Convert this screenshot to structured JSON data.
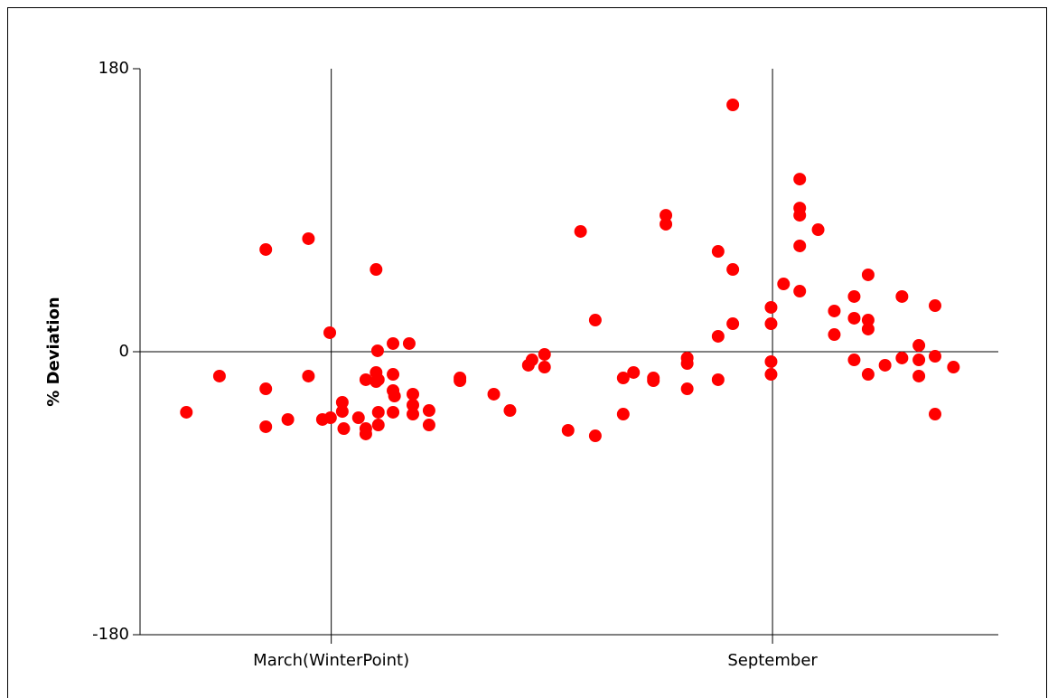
{
  "chart_data": {
    "type": "scatter",
    "y_label": "% Deviation",
    "color": "#ff0000",
    "xlim": [
      0.4,
      12.07
    ],
    "xticks": [
      {
        "value": 3,
        "label": "March(WinterPoint)"
      },
      {
        "value": 9,
        "label": "September"
      }
    ],
    "ylim": [
      -180,
      180
    ],
    "yticks": [
      -180,
      0,
      180
    ],
    "grid": true,
    "x": [
      1.03,
      1.48,
      2.11,
      2.11,
      2.11,
      2.41,
      2.69,
      2.69,
      2.88,
      2.98,
      2.99,
      3.15,
      3.15,
      3.17,
      3.37,
      3.47,
      3.47,
      3.47,
      3.61,
      3.63,
      3.61,
      3.61,
      3.64,
      3.64,
      3.64,
      3.84,
      3.84,
      3.84,
      3.86,
      3.84,
      4.06,
      4.11,
      4.11,
      4.11,
      4.33,
      4.33,
      4.75,
      4.75,
      5.21,
      5.43,
      5.68,
      5.73,
      5.9,
      5.9,
      6.22,
      6.39,
      6.59,
      6.59,
      6.97,
      6.97,
      7.11,
      7.38,
      7.38,
      7.55,
      7.55,
      7.84,
      7.84,
      7.84,
      8.26,
      8.26,
      8.26,
      8.46,
      8.46,
      8.46,
      8.98,
      8.98,
      8.98,
      8.98,
      9.15,
      9.37,
      9.37,
      9.37,
      9.37,
      9.37,
      9.62,
      9.84,
      9.84,
      10.11,
      10.11,
      10.11,
      10.3,
      10.3,
      10.3,
      10.3,
      10.53,
      10.76,
      10.76,
      10.99,
      10.99,
      10.99,
      11.21,
      11.21,
      11.21,
      11.46
    ],
    "values": [
      -38.5,
      -15.5,
      65.0,
      -23.6,
      -47.7,
      -43.1,
      71.9,
      -15.5,
      -43.1,
      12.1,
      -42.0,
      -32.2,
      -38.0,
      -48.9,
      -42.0,
      -48.9,
      -52.3,
      -17.8,
      52.3,
      0.6,
      -13.2,
      -19.0,
      -17.8,
      -38.5,
      -46.6,
      5.2,
      -14.4,
      -24.7,
      -28.2,
      -38.5,
      5.2,
      -27.0,
      -33.9,
      -39.7,
      -37.4,
      -46.6,
      -16.7,
      -18.4,
      -27.0,
      -37.4,
      -8.6,
      -5.2,
      -1.7,
      -9.8,
      -50.0,
      76.5,
      20.1,
      -53.5,
      -16.7,
      -39.7,
      -13.2,
      -16.7,
      -18.4,
      86.8,
      81.1,
      -4.0,
      -7.5,
      -23.6,
      63.8,
      9.8,
      -17.8,
      157.0,
      52.3,
      17.8,
      28.2,
      17.8,
      -6.3,
      -14.4,
      43.1,
      109.8,
      91.4,
      86.8,
      67.3,
      38.5,
      77.6,
      25.9,
      10.9,
      35.1,
      21.3,
      -5.2,
      48.9,
      20.1,
      14.4,
      -14.4,
      -8.6,
      35.1,
      -4.0,
      4.0,
      -5.2,
      -15.5,
      29.3,
      -2.9,
      -39.7,
      -9.8
    ]
  }
}
